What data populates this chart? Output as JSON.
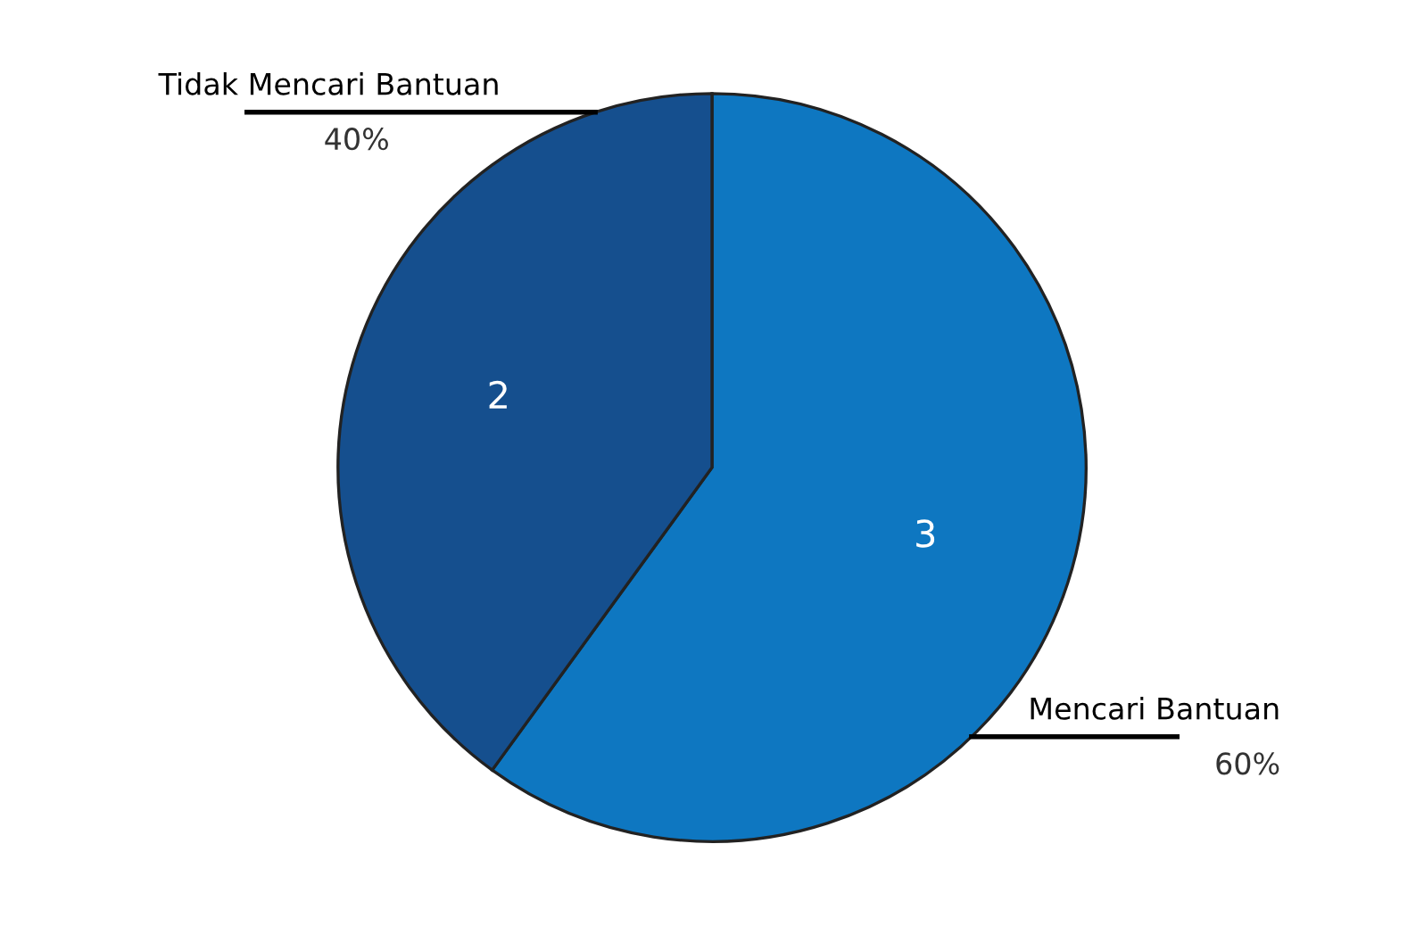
{
  "chart_data": {
    "type": "pie",
    "categories": [
      "Mencari Bantuan",
      "Tidak Mencari Bantuan"
    ],
    "values": [
      3,
      2
    ],
    "colors": [
      "#0e77c1",
      "#154f8e"
    ],
    "data_labels": true,
    "annotations": [
      "60%",
      "40%"
    ]
  }
}
